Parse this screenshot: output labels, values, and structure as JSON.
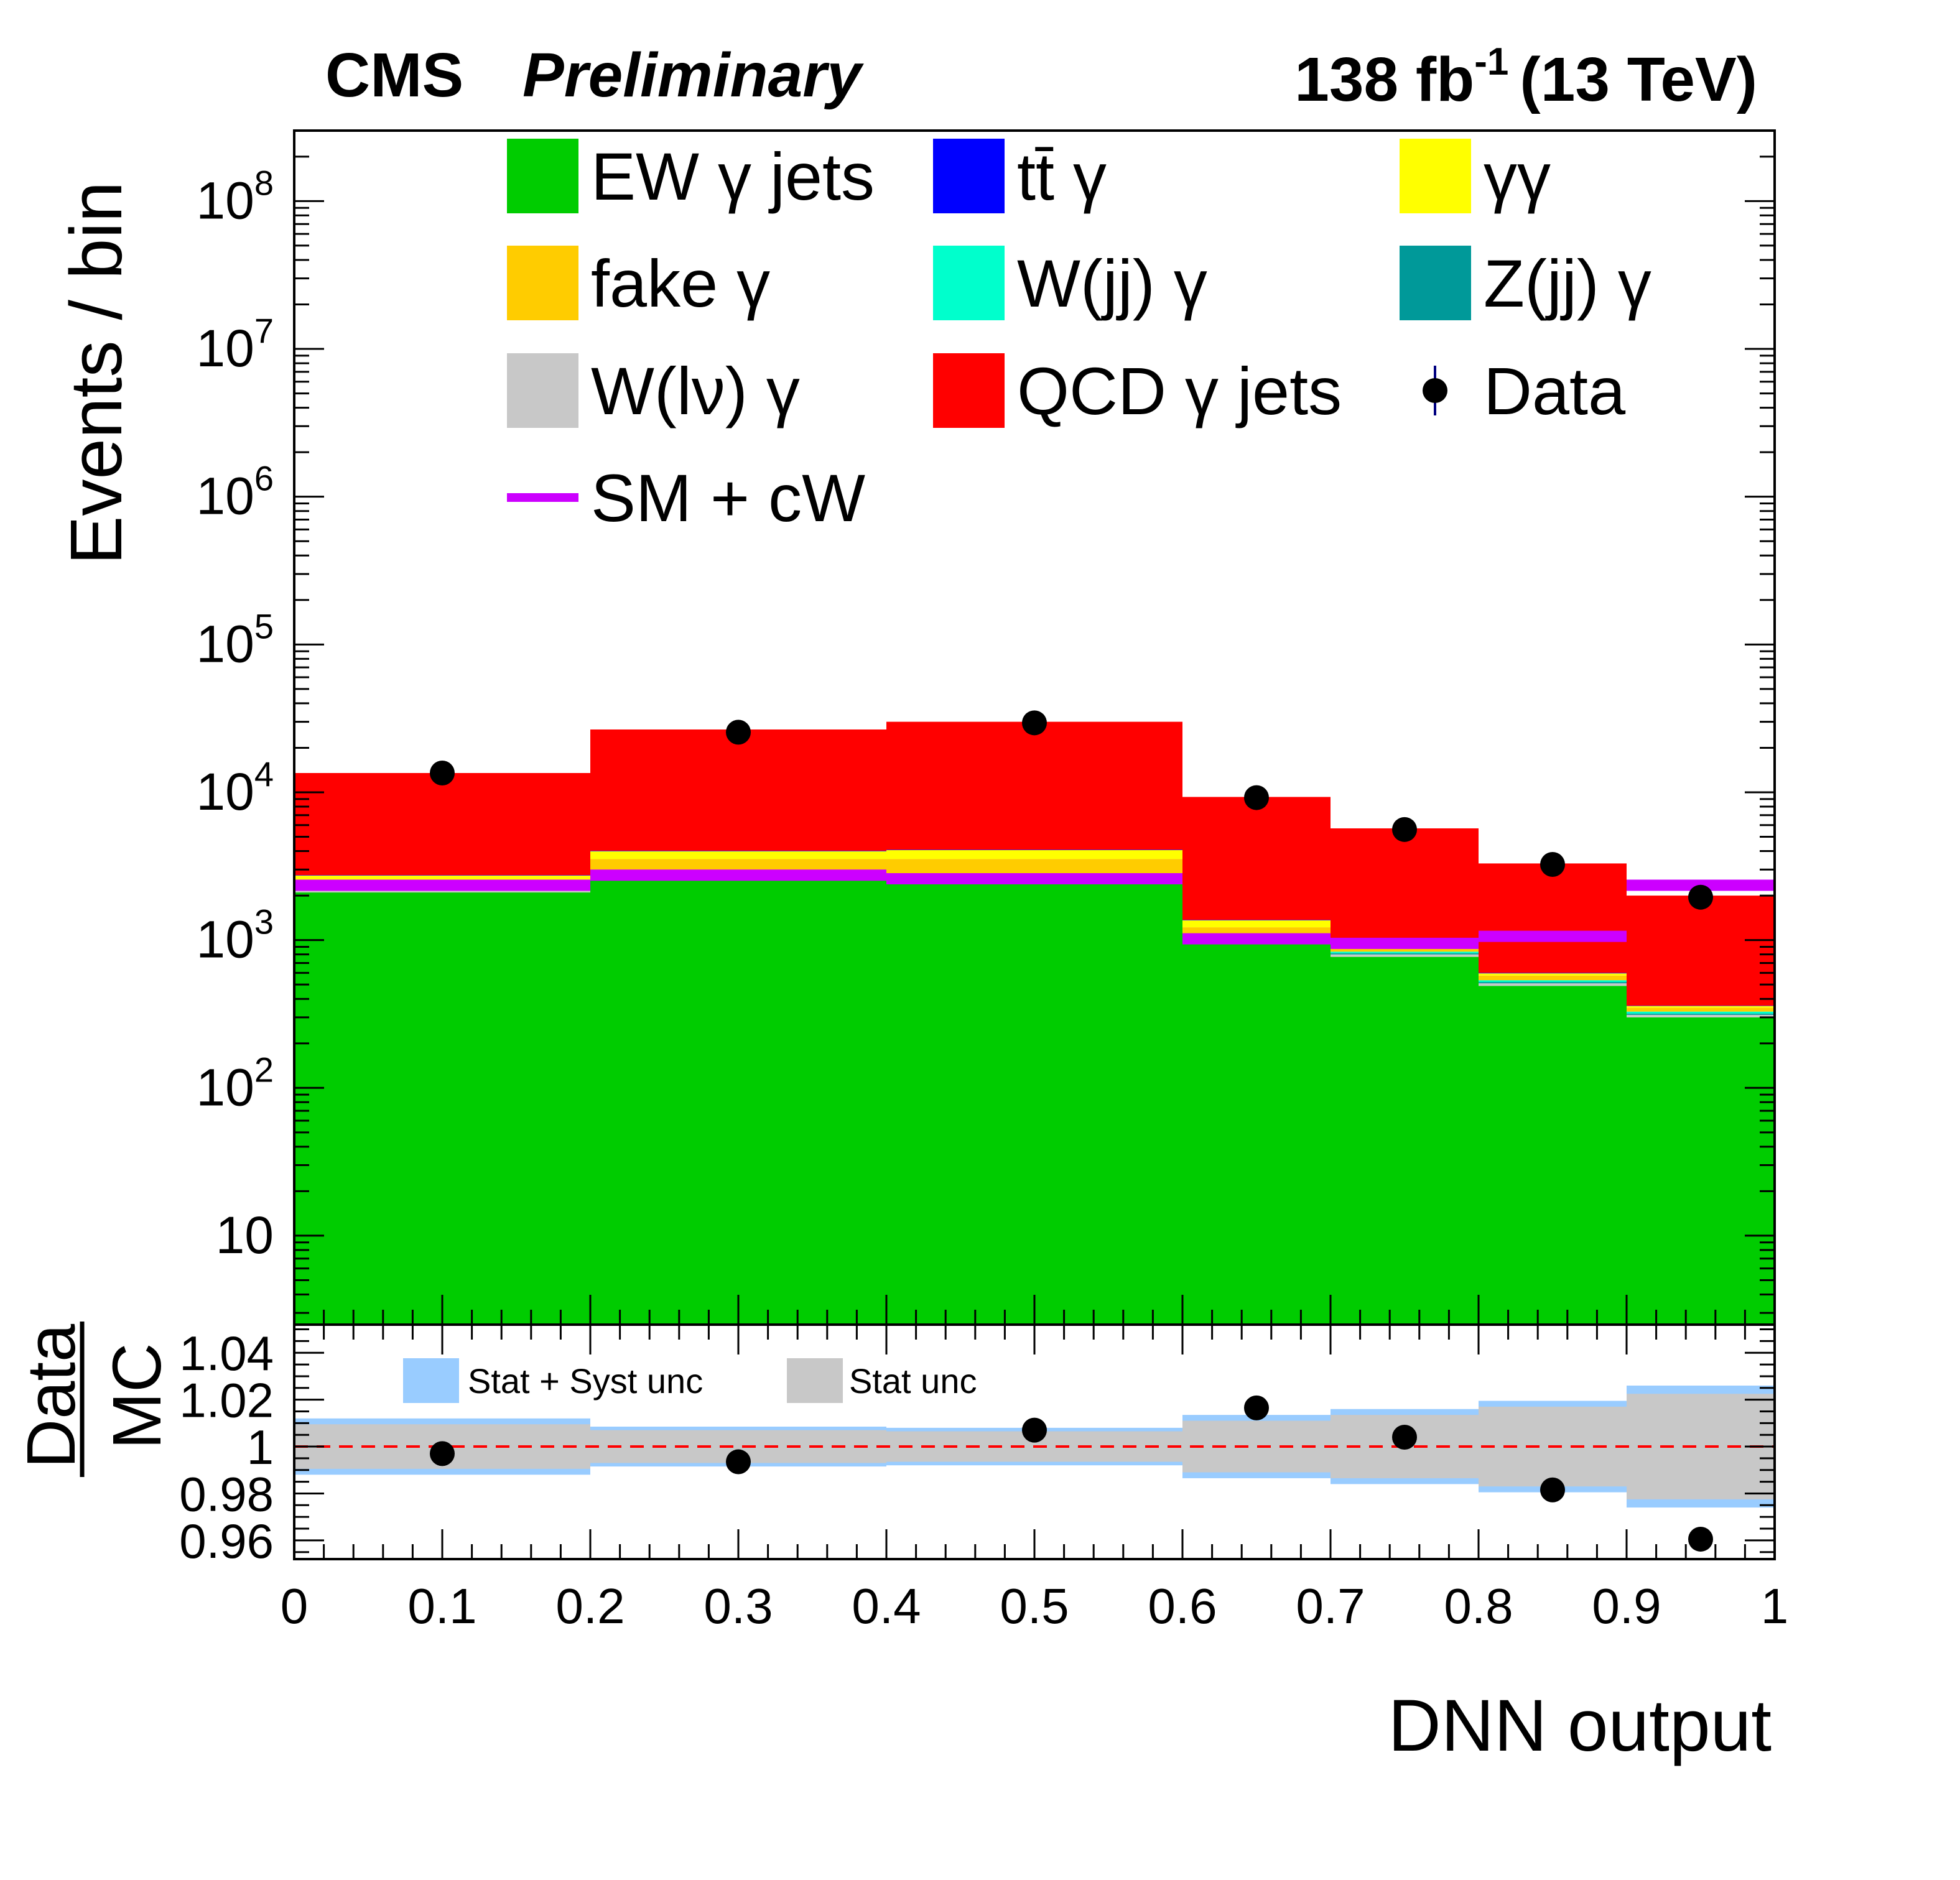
{
  "header": {
    "experiment": "CMS",
    "status": "Preliminary",
    "lumi": "138 fb",
    "lumi_exp": "-1",
    "energy": "(13 TeV)"
  },
  "chart_data": [
    {
      "type": "bar",
      "subtype": "stacked-histogram",
      "yscale": "log",
      "ylabel": "Events / bin",
      "ylim": [
        2.5,
        300000000
      ],
      "ytick_labels": [
        {
          "value": 10,
          "base": "10",
          "exp": ""
        },
        {
          "value": 100,
          "base": "10",
          "exp": "2"
        },
        {
          "value": 1000,
          "base": "10",
          "exp": "3"
        },
        {
          "value": 10000,
          "base": "10",
          "exp": "4"
        },
        {
          "value": 100000,
          "base": "10",
          "exp": "5"
        },
        {
          "value": 1000000,
          "base": "10",
          "exp": "6"
        },
        {
          "value": 10000000,
          "base": "10",
          "exp": "7"
        },
        {
          "value": 100000000,
          "base": "10",
          "exp": "8"
        }
      ],
      "bin_edges": [
        0,
        0.2,
        0.4,
        0.6,
        0.7,
        0.8,
        0.9,
        1.0
      ],
      "stack_order": [
        "EW γ jets",
        "W(lν) γ",
        "Z(jj) γ",
        "W(jj) γ",
        "fake γ",
        "γγ",
        "tt̄ γ",
        "QCD γ jets"
      ],
      "series": [
        {
          "name": "EW γ jets",
          "color": "#00cc00",
          "values": [
            2100,
            2600,
            2500,
            950,
            770,
            490,
            300
          ]
        },
        {
          "name": "W(lν) γ",
          "color": "#c8c8c8",
          "values": [
            90,
            110,
            110,
            40,
            30,
            20,
            12
          ]
        },
        {
          "name": "Z(jj) γ",
          "color": "#009999",
          "values": [
            40,
            50,
            50,
            20,
            15,
            10,
            6
          ]
        },
        {
          "name": "W(jj) γ",
          "color": "#00ffcc",
          "values": [
            60,
            80,
            80,
            30,
            20,
            15,
            10
          ]
        },
        {
          "name": "fake γ",
          "color": "#ffcc00",
          "values": [
            270,
            700,
            800,
            180,
            40,
            40,
            20
          ]
        },
        {
          "name": "γγ",
          "color": "#ffff00",
          "values": [
            170,
            450,
            520,
            140,
            30,
            20,
            10
          ]
        },
        {
          "name": "tt̄ γ",
          "color": "#0000ff",
          "values": [
            20,
            30,
            30,
            10,
            5,
            5,
            2
          ]
        },
        {
          "name": "QCD γ jets",
          "color": "#ff0000",
          "values": [
            10750,
            22580,
            25910,
            7930,
            4790,
            2700,
            1640
          ]
        }
      ],
      "overlay": {
        "name": "SM + cW",
        "color": "#cc00ff",
        "values": [
          2350,
          2750,
          2600,
          1020,
          950,
          1060,
          2350
        ]
      },
      "data_points": {
        "name": "Data",
        "x": [
          0.1,
          0.3,
          0.5,
          0.65,
          0.75,
          0.85,
          0.95
        ],
        "values": [
          13500,
          25500,
          29500,
          9200,
          5600,
          3250,
          1950
        ]
      },
      "legend": [
        "EW γ jets",
        "tt̄ γ",
        "γγ",
        "fake γ",
        "W(jj) γ",
        "Z(jj) γ",
        "W(lν) γ",
        "QCD γ jets",
        "Data",
        "SM + cW"
      ],
      "legend_location": "top",
      "data_legend_label": "Data"
    },
    {
      "type": "scatter",
      "subtype": "ratio",
      "ylabel_numerator": "Data",
      "ylabel_denominator": "MC",
      "xlabel": "DNN output",
      "xlim": [
        0,
        1
      ],
      "ylim": [
        0.952,
        1.052
      ],
      "xtick_labels": [
        "0",
        "0.1",
        "0.2",
        "0.3",
        "0.4",
        "0.5",
        "0.6",
        "0.7",
        "0.8",
        "0.9",
        "1"
      ],
      "ytick_labels": [
        "0.96",
        "0.98",
        "1",
        "1.02",
        "1.04"
      ],
      "reference_line": 1.0,
      "points": {
        "x": [
          0.1,
          0.3,
          0.5,
          0.65,
          0.75,
          0.85,
          0.95
        ],
        "y": [
          0.997,
          0.9935,
          1.007,
          1.0165,
          1.004,
          0.9815,
          0.9605
        ]
      },
      "bands": [
        {
          "name": "Stat + Syst unc",
          "color": "#99ccff",
          "half_width": [
            0.012,
            0.0085,
            0.008,
            0.0135,
            0.016,
            0.0195,
            0.026
          ]
        },
        {
          "name": "Stat unc",
          "color": "#c8c8c8",
          "half_width": [
            0.0095,
            0.007,
            0.0065,
            0.011,
            0.0135,
            0.017,
            0.0225
          ]
        }
      ],
      "bin_edges": [
        0,
        0.2,
        0.4,
        0.6,
        0.7,
        0.8,
        0.9,
        1.0
      ]
    }
  ]
}
